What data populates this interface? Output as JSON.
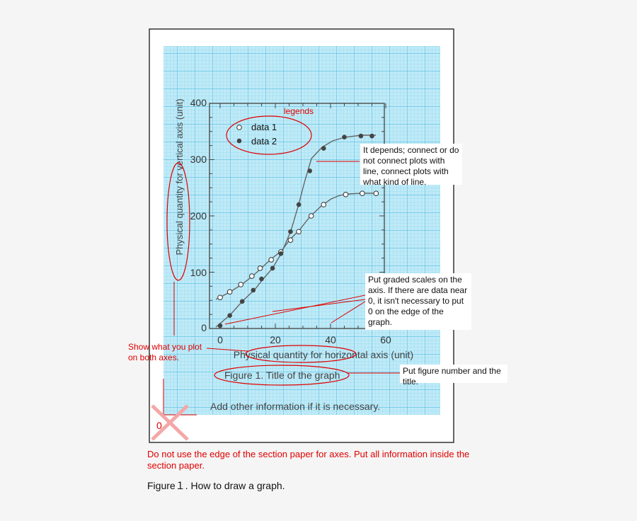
{
  "chart_data": {
    "type": "scatter",
    "xlim": [
      0,
      60
    ],
    "ylim": [
      0,
      400
    ],
    "x_ticks": [
      "0",
      "20",
      "40",
      "60"
    ],
    "y_ticks": [
      "0",
      "100",
      "200",
      "300",
      "400"
    ],
    "xlabel": "Physical quantity for horizontal axis (unit)",
    "ylabel": "Physical quantity for vertical axis (unit)",
    "title": "Figure 1. Title of the graph",
    "grid": true,
    "legend_position": "top-left",
    "series": [
      {
        "name": "data 1",
        "marker": "open-circle",
        "x": [
          0,
          3.5,
          7.5,
          11.5,
          14.5,
          18.5,
          22,
          25.5,
          28.5,
          33,
          37.5,
          45.5,
          51.5,
          56.5
        ],
        "y": [
          55,
          65,
          78,
          93,
          107,
          122,
          136,
          157,
          172,
          200,
          220,
          238,
          240,
          240
        ]
      },
      {
        "name": "data 2",
        "marker": "filled-circle",
        "x": [
          0,
          3.5,
          8,
          12,
          15,
          19,
          22,
          25.5,
          28.5,
          32.5,
          37.5,
          45,
          51,
          55
        ],
        "y": [
          5,
          23,
          48,
          68,
          88,
          107,
          133,
          172,
          220,
          280,
          320,
          340,
          342,
          342
        ]
      }
    ]
  },
  "annotations": {
    "legends": "legends",
    "line_note": "It depends; connect or do not connect plots with line, connect plots with what kind of line.",
    "scale_note": "Put graded scales on the axis. If there are data near 0, it isn't necessary to put 0 on the edge  of the graph.",
    "axes_note": "Show what you plot on both axes.",
    "figure_note": "Put figure number and the title.",
    "info_note": "Add other information if it is necessary.",
    "wrong_zero": "0",
    "edge_note": "Do not use the edge of the section paper for axes. Put all information inside the section paper.",
    "figure_caption": "Figure１. How to draw a graph."
  },
  "colors": {
    "grid_paper": "#bfeaf7",
    "grid_line": "#6fc9e6",
    "annotation_red": "#e00000",
    "cross_pink": "#f4a7a7",
    "curve": "#555555"
  }
}
